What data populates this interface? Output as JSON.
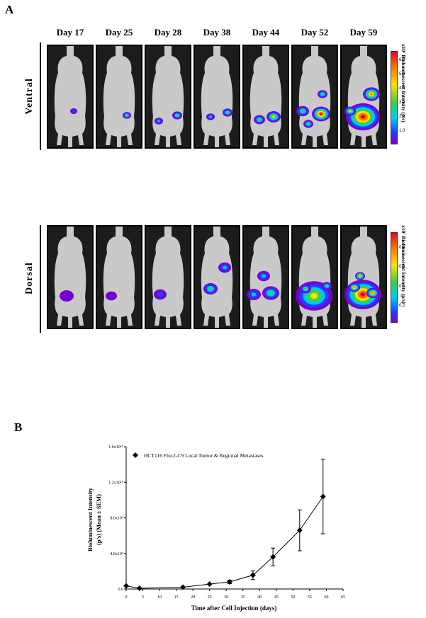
{
  "panel_a": {
    "label": "A",
    "days": [
      "Day 17",
      "Day 25",
      "Day 28",
      "Day 38",
      "Day 44",
      "Day 52",
      "Day 59"
    ],
    "ventral": {
      "view_label": "Ventral",
      "scale_title": "x10⁷ Bioluminescent Intensity (p/s)",
      "scale_ticks": [
        "6.0",
        "5.0",
        "4.0",
        "3.0",
        "2.0",
        "1.0"
      ]
    },
    "dorsal": {
      "view_label": "Dorsal",
      "scale_title": "x10⁷ Bioluminescent Intensity (p/s)",
      "scale_ticks": [
        "0.8",
        "0.6",
        "0.4",
        "0.2"
      ]
    }
  },
  "panel_b": {
    "label": "B",
    "chart_data": {
      "type": "line",
      "xlabel": "Time after Cell Injection (days)",
      "ylabel": "Bioluminescent Intensity (p/s) (Mean ± SEM)",
      "xlim": [
        0,
        65
      ],
      "x_ticks": [
        "0",
        "5",
        "10",
        "15",
        "20",
        "25",
        "30",
        "35",
        "40",
        "45",
        "50",
        "55",
        "60",
        "65"
      ],
      "ylim": [
        0,
        16000000000
      ],
      "y_ticks": [
        "0.0",
        "4.0x10⁹",
        "8.0x10⁹",
        "1.2x10¹⁰",
        "1.6x10¹⁰"
      ],
      "grid": false,
      "legend_position": "top-left",
      "series": [
        {
          "name": "HCT116 Fluc2-C9 Local Tumor & Regional Metastases",
          "x": [
            0,
            4,
            17,
            25,
            31,
            38,
            44,
            52,
            59
          ],
          "y": [
            350000000,
            80000000,
            200000000,
            550000000,
            800000000,
            1550000000,
            3600000000,
            6600000000,
            10400000000
          ],
          "err": [
            0,
            0,
            0,
            0,
            200000000,
            500000000,
            1000000000,
            2300000000,
            4200000000
          ]
        }
      ]
    }
  }
}
